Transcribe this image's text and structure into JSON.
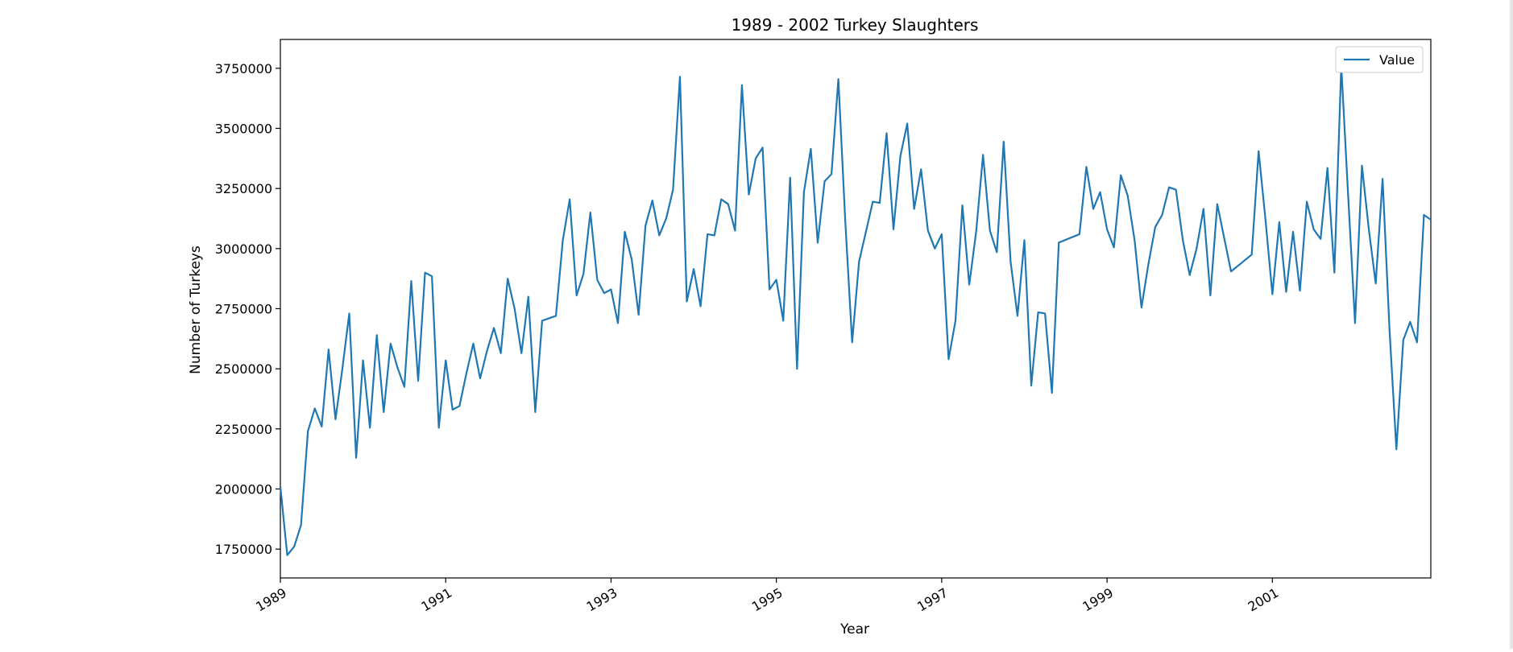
{
  "chart_data": {
    "type": "line",
    "title": "1989 - 2002 Turkey Slaughters",
    "xlabel": "Year",
    "ylabel": "Number of Turkeys",
    "xlim": [
      "1989-01",
      "2002-12"
    ],
    "ylim": [
      1630000,
      3870000
    ],
    "yticks": [
      1750000,
      2000000,
      2250000,
      2500000,
      2750000,
      3000000,
      3250000,
      3500000,
      3750000
    ],
    "xticks": [
      "1989",
      "1991",
      "1993",
      "1995",
      "1997",
      "1999",
      "2001"
    ],
    "grid": false,
    "legend": "top-right",
    "line_color": "#1f77b4",
    "series": [
      {
        "name": "Value",
        "points": [
          [
            "1989-01",
            2010000
          ],
          [
            "1989-02",
            1725000
          ],
          [
            "1989-03",
            1760000
          ],
          [
            "1989-04",
            1850000
          ],
          [
            "1989-05",
            2240000
          ],
          [
            "1989-06",
            2335000
          ],
          [
            "1989-07",
            2260000
          ],
          [
            "1989-08",
            2580000
          ],
          [
            "1989-09",
            2290000
          ],
          [
            "1989-10",
            2500000
          ],
          [
            "1989-11",
            2730000
          ],
          [
            "1989-12",
            2130000
          ],
          [
            "1990-01",
            2535000
          ],
          [
            "1990-02",
            2255000
          ],
          [
            "1990-03",
            2640000
          ],
          [
            "1990-04",
            2320000
          ],
          [
            "1990-05",
            2605000
          ],
          [
            "1990-06",
            2505000
          ],
          [
            "1990-07",
            2425000
          ],
          [
            "1990-08",
            2865000
          ],
          [
            "1990-09",
            2450000
          ],
          [
            "1990-10",
            2900000
          ],
          [
            "1990-11",
            2885000
          ],
          [
            "1990-12",
            2255000
          ],
          [
            "1991-01",
            2535000
          ],
          [
            "1991-02",
            2330000
          ],
          [
            "1991-03",
            2345000
          ],
          [
            "1991-04",
            2480000
          ],
          [
            "1991-05",
            2605000
          ],
          [
            "1991-06",
            2460000
          ],
          [
            "1991-07",
            2575000
          ],
          [
            "1991-08",
            2670000
          ],
          [
            "1991-09",
            2565000
          ],
          [
            "1991-10",
            2875000
          ],
          [
            "1991-11",
            2750000
          ],
          [
            "1991-12",
            2565000
          ],
          [
            "1992-01",
            2800000
          ],
          [
            "1992-02",
            2320000
          ],
          [
            "1992-03",
            2700000
          ],
          [
            "1992-05",
            2720000
          ],
          [
            "1992-06",
            3035000
          ],
          [
            "1992-07",
            3205000
          ],
          [
            "1992-08",
            2805000
          ],
          [
            "1992-09",
            2895000
          ],
          [
            "1992-10",
            3150000
          ],
          [
            "1992-11",
            2870000
          ],
          [
            "1992-12",
            2815000
          ],
          [
            "1993-01",
            2830000
          ],
          [
            "1993-02",
            2690000
          ],
          [
            "1993-03",
            3070000
          ],
          [
            "1993-04",
            2955000
          ],
          [
            "1993-05",
            2725000
          ],
          [
            "1993-06",
            3095000
          ],
          [
            "1993-07",
            3200000
          ],
          [
            "1993-08",
            3055000
          ],
          [
            "1993-09",
            3125000
          ],
          [
            "1993-10",
            3245000
          ],
          [
            "1993-11",
            3715000
          ],
          [
            "1993-12",
            2780000
          ],
          [
            "1994-01",
            2915000
          ],
          [
            "1994-02",
            2760000
          ],
          [
            "1994-03",
            3060000
          ],
          [
            "1994-04",
            3055000
          ],
          [
            "1994-05",
            3205000
          ],
          [
            "1994-06",
            3185000
          ],
          [
            "1994-07",
            3075000
          ],
          [
            "1994-08",
            3680000
          ],
          [
            "1994-09",
            3225000
          ],
          [
            "1994-10",
            3375000
          ],
          [
            "1994-11",
            3420000
          ],
          [
            "1994-12",
            2830000
          ],
          [
            "1995-01",
            2870000
          ],
          [
            "1995-02",
            2700000
          ],
          [
            "1995-03",
            3295000
          ],
          [
            "1995-04",
            2500000
          ],
          [
            "1995-05",
            3235000
          ],
          [
            "1995-06",
            3415000
          ],
          [
            "1995-07",
            3025000
          ],
          [
            "1995-08",
            3280000
          ],
          [
            "1995-09",
            3310000
          ],
          [
            "1995-10",
            3705000
          ],
          [
            "1995-11",
            3115000
          ],
          [
            "1995-12",
            2610000
          ],
          [
            "1996-01",
            2945000
          ],
          [
            "1996-02",
            3070000
          ],
          [
            "1996-03",
            3195000
          ],
          [
            "1996-04",
            3190000
          ],
          [
            "1996-05",
            3480000
          ],
          [
            "1996-06",
            3080000
          ],
          [
            "1996-07",
            3385000
          ],
          [
            "1996-08",
            3520000
          ],
          [
            "1996-09",
            3165000
          ],
          [
            "1996-10",
            3330000
          ],
          [
            "1996-11",
            3075000
          ],
          [
            "1996-12",
            3000000
          ],
          [
            "1997-01",
            3060000
          ],
          [
            "1997-02",
            2540000
          ],
          [
            "1997-03",
            2700000
          ],
          [
            "1997-04",
            3180000
          ],
          [
            "1997-05",
            2850000
          ],
          [
            "1997-06",
            3070000
          ],
          [
            "1997-07",
            3390000
          ],
          [
            "1997-08",
            3075000
          ],
          [
            "1997-09",
            2985000
          ],
          [
            "1997-10",
            3445000
          ],
          [
            "1997-11",
            2945000
          ],
          [
            "1997-12",
            2720000
          ],
          [
            "1998-01",
            3035000
          ],
          [
            "1998-02",
            2430000
          ],
          [
            "1998-03",
            2735000
          ],
          [
            "1998-04",
            2730000
          ],
          [
            "1998-05",
            2400000
          ],
          [
            "1998-06",
            3025000
          ],
          [
            "1998-09",
            3060000
          ],
          [
            "1998-10",
            3340000
          ],
          [
            "1998-11",
            3165000
          ],
          [
            "1998-12",
            3235000
          ],
          [
            "1999-01",
            3080000
          ],
          [
            "1999-02",
            3005000
          ],
          [
            "1999-03",
            3305000
          ],
          [
            "1999-04",
            3220000
          ],
          [
            "1999-05",
            3035000
          ],
          [
            "1999-06",
            2755000
          ],
          [
            "1999-07",
            2935000
          ],
          [
            "1999-08",
            3090000
          ],
          [
            "1999-09",
            3140000
          ],
          [
            "1999-10",
            3255000
          ],
          [
            "1999-11",
            3245000
          ],
          [
            "1999-12",
            3035000
          ],
          [
            "2000-01",
            2890000
          ],
          [
            "2000-02",
            3000000
          ],
          [
            "2000-03",
            3165000
          ],
          [
            "2000-04",
            2805000
          ],
          [
            "2000-05",
            3185000
          ],
          [
            "2000-06",
            3045000
          ],
          [
            "2000-07",
            2905000
          ],
          [
            "2000-10",
            2975000
          ],
          [
            "2000-11",
            3405000
          ],
          [
            "2000-12",
            3120000
          ],
          [
            "2001-01",
            2810000
          ],
          [
            "2001-02",
            3110000
          ],
          [
            "2001-03",
            2820000
          ],
          [
            "2001-04",
            3070000
          ],
          [
            "2001-05",
            2825000
          ],
          [
            "2001-06",
            3195000
          ],
          [
            "2001-07",
            3080000
          ],
          [
            "2001-08",
            3040000
          ],
          [
            "2001-09",
            3335000
          ],
          [
            "2001-10",
            2900000
          ],
          [
            "2001-11",
            3760000
          ],
          [
            "2001-12",
            3220000
          ],
          [
            "2002-01",
            2690000
          ],
          [
            "2002-02",
            3345000
          ],
          [
            "2002-03",
            3080000
          ],
          [
            "2002-04",
            2855000
          ],
          [
            "2002-05",
            3290000
          ],
          [
            "2002-06",
            2665000
          ],
          [
            "2002-07",
            2165000
          ],
          [
            "2002-08",
            2620000
          ],
          [
            "2002-09",
            2695000
          ],
          [
            "2002-10",
            2610000
          ],
          [
            "2002-11",
            3140000
          ],
          [
            "2002-12",
            3120000
          ]
        ]
      }
    ]
  }
}
